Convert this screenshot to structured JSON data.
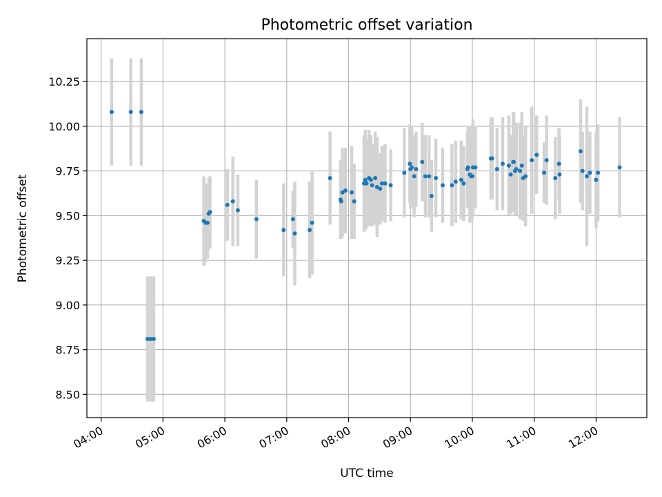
{
  "chart_data": {
    "type": "scatter",
    "title": "Photometric offset variation",
    "xlabel": "UTC time",
    "ylabel": "Photometric offset",
    "xlim": [
      3.77,
      12.82
    ],
    "ylim": [
      8.37,
      10.49
    ],
    "grid": true,
    "x_ticks": [
      {
        "value": 4,
        "label": "04:00"
      },
      {
        "value": 5,
        "label": "05:00"
      },
      {
        "value": 6,
        "label": "06:00"
      },
      {
        "value": 7,
        "label": "07:00"
      },
      {
        "value": 8,
        "label": "08:00"
      },
      {
        "value": 9,
        "label": "09:00"
      },
      {
        "value": 10,
        "label": "10:00"
      },
      {
        "value": 11,
        "label": "11:00"
      },
      {
        "value": 12,
        "label": "12:00"
      }
    ],
    "y_ticks": [
      {
        "value": 8.5,
        "label": "8.50"
      },
      {
        "value": 8.75,
        "label": "8.75"
      },
      {
        "value": 9.0,
        "label": "9.00"
      },
      {
        "value": 9.25,
        "label": "9.25"
      },
      {
        "value": 9.5,
        "label": "9.50"
      },
      {
        "value": 9.75,
        "label": "9.75"
      },
      {
        "value": 10.0,
        "label": "10.00"
      },
      {
        "value": 10.25,
        "label": "10.25"
      }
    ],
    "colors": {
      "point": "#1f77b4",
      "errorbar": "#d3d3d3",
      "grid": "#b0b0b0"
    },
    "series": [
      {
        "name": "offset",
        "x_hours": [
          4.17,
          4.48,
          4.65,
          4.75,
          4.8,
          4.85,
          5.66,
          5.69,
          5.72,
          5.74,
          5.76,
          6.04,
          6.13,
          6.21,
          6.51,
          6.95,
          7.1,
          7.13,
          7.37,
          7.41,
          7.7,
          7.87,
          7.88,
          7.9,
          7.95,
          8.05,
          8.09,
          8.25,
          8.27,
          8.29,
          8.33,
          8.36,
          8.38,
          8.43,
          8.46,
          8.51,
          8.54,
          8.59,
          8.68,
          8.9,
          8.99,
          9.0,
          9.02,
          9.06,
          9.09,
          9.19,
          9.24,
          9.3,
          9.34,
          9.41,
          9.52,
          9.67,
          9.73,
          9.82,
          9.86,
          9.92,
          9.93,
          9.96,
          9.98,
          10.0,
          10.01,
          10.05,
          10.3,
          10.32,
          10.4,
          10.49,
          10.59,
          10.62,
          10.66,
          10.67,
          10.69,
          10.71,
          10.77,
          10.8,
          10.82,
          10.86,
          10.96,
          11.04,
          11.16,
          11.2,
          11.34,
          11.4,
          11.41,
          11.75,
          11.78,
          11.85,
          11.9,
          12.0,
          12.03,
          12.38
        ],
        "y": [
          10.08,
          10.08,
          10.08,
          8.81,
          8.81,
          8.81,
          9.47,
          9.46,
          9.46,
          9.51,
          9.52,
          9.56,
          9.58,
          9.53,
          9.48,
          9.42,
          9.48,
          9.4,
          9.42,
          9.46,
          9.71,
          9.59,
          9.58,
          9.63,
          9.64,
          9.63,
          9.58,
          9.68,
          9.7,
          9.68,
          9.71,
          9.7,
          9.67,
          9.71,
          9.66,
          9.65,
          9.68,
          9.68,
          9.67,
          9.74,
          9.79,
          9.76,
          9.77,
          9.72,
          9.76,
          9.8,
          9.72,
          9.72,
          9.61,
          9.71,
          9.67,
          9.67,
          9.69,
          9.7,
          9.68,
          9.76,
          9.77,
          9.73,
          9.72,
          9.72,
          9.77,
          9.77,
          9.82,
          9.82,
          9.76,
          9.79,
          9.78,
          9.73,
          9.8,
          9.8,
          9.75,
          9.76,
          9.75,
          9.78,
          9.71,
          9.72,
          9.81,
          9.84,
          9.74,
          9.81,
          9.71,
          9.79,
          9.73,
          9.86,
          9.75,
          9.72,
          9.74,
          9.7,
          9.74,
          9.77
        ],
        "err": [
          0.3,
          0.3,
          0.3,
          0.35,
          0.35,
          0.35,
          0.25,
          0.22,
          0.2,
          0.2,
          0.2,
          0.2,
          0.25,
          0.2,
          0.22,
          0.26,
          0.16,
          0.29,
          0.27,
          0.29,
          0.26,
          0.22,
          0.21,
          0.25,
          0.24,
          0.26,
          0.21,
          0.27,
          0.28,
          0.25,
          0.27,
          0.25,
          0.23,
          0.26,
          0.28,
          0.2,
          0.21,
          0.22,
          0.2,
          0.25,
          0.22,
          0.22,
          0.23,
          0.23,
          0.21,
          0.22,
          0.23,
          0.23,
          0.2,
          0.22,
          0.21,
          0.23,
          0.23,
          0.22,
          0.21,
          0.21,
          0.23,
          0.27,
          0.24,
          0.24,
          0.27,
          0.23,
          0.23,
          0.23,
          0.23,
          0.26,
          0.28,
          0.22,
          0.28,
          0.28,
          0.25,
          0.26,
          0.27,
          0.3,
          0.24,
          0.28,
          0.3,
          0.22,
          0.17,
          0.25,
          0.23,
          0.2,
          0.22,
          0.29,
          0.22,
          0.39,
          0.23,
          0.27,
          0.27,
          0.28
        ]
      }
    ]
  }
}
